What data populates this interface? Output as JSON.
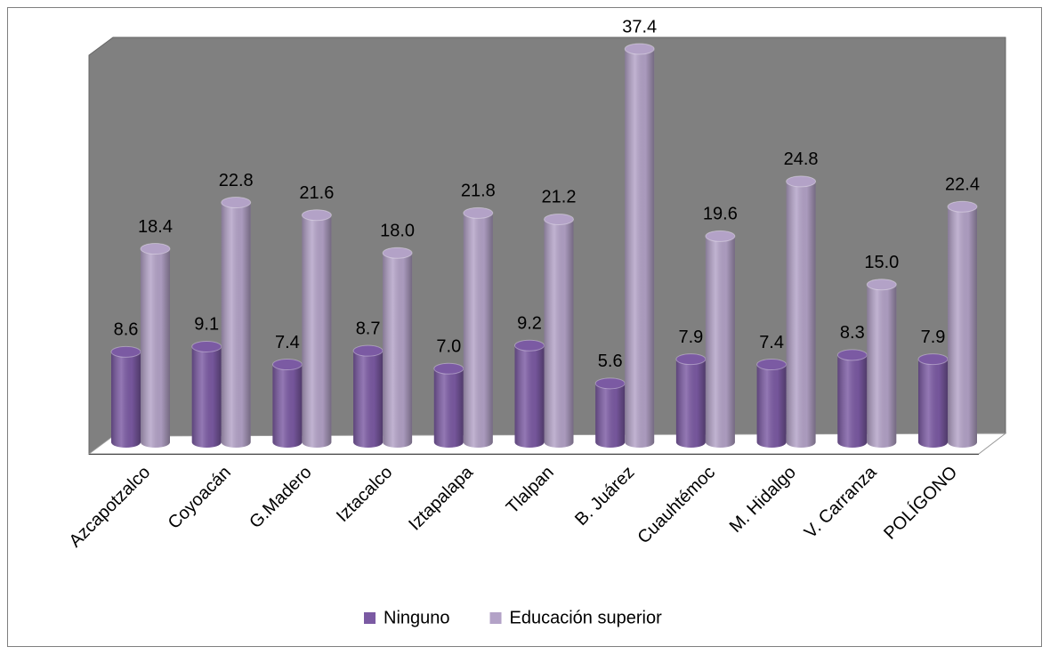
{
  "chart_data": {
    "type": "bar3d",
    "categories": [
      "Azcapotzalco",
      "Coyoacán",
      "G.Madero",
      "Iztacalco",
      "Iztapalapa",
      "Tlalpan",
      "B. Juárez",
      "Cuauhtémoc",
      "M. Hidalgo",
      "V. Carranza",
      "POLÍGONO"
    ],
    "series": [
      {
        "name": "Ninguno",
        "color": "#7b5aa3",
        "values": [
          8.6,
          9.1,
          7.4,
          8.7,
          7.0,
          9.2,
          5.6,
          7.9,
          7.4,
          8.3,
          7.9
        ],
        "value_labels": [
          "8.6",
          "9.1",
          "7.4",
          "8.7",
          "7.0",
          "9.2",
          "5.6",
          "7.9",
          "7.4",
          "8.3",
          "7.9"
        ]
      },
      {
        "name": "Educación superior",
        "color": "#b3a2c7",
        "values": [
          18.4,
          22.8,
          21.6,
          18.0,
          21.8,
          21.2,
          37.4,
          19.6,
          24.8,
          15.0,
          22.4
        ],
        "value_labels": [
          "18.4",
          "22.8",
          "21.6",
          "18.0",
          "21.8",
          "21.2",
          "37.4",
          "19.6",
          "24.8",
          "15.0",
          "22.4"
        ]
      }
    ]
  }
}
